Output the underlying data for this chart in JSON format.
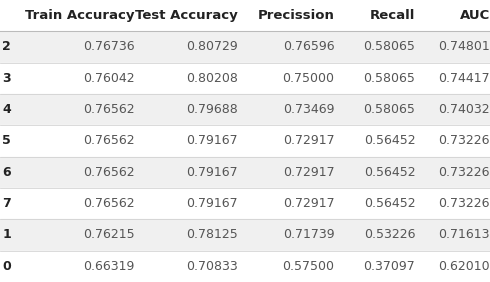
{
  "columns": [
    "Train Accuracy",
    "Test Accuracy",
    "Precission",
    "Recall",
    "AUC"
  ],
  "index": [
    "2",
    "3",
    "4",
    "5",
    "6",
    "7",
    "1",
    "0"
  ],
  "rows": [
    [
      0.76736,
      0.80729,
      0.76596,
      0.58065,
      0.74801
    ],
    [
      0.76042,
      0.80208,
      0.75,
      0.58065,
      0.74417
    ],
    [
      0.76562,
      0.79688,
      0.73469,
      0.58065,
      0.74032
    ],
    [
      0.76562,
      0.79167,
      0.72917,
      0.56452,
      0.73226
    ],
    [
      0.76562,
      0.79167,
      0.72917,
      0.56452,
      0.73226
    ],
    [
      0.76562,
      0.79167,
      0.72917,
      0.56452,
      0.73226
    ],
    [
      0.76215,
      0.78125,
      0.71739,
      0.53226,
      0.71613
    ],
    [
      0.66319,
      0.70833,
      0.575,
      0.37097,
      0.6201
    ]
  ],
  "odd_row_bg": "#F0F0F0",
  "even_row_bg": "#FFFFFF",
  "header_text_color": "#222222",
  "index_text_color": "#222222",
  "data_text_color": "#555555",
  "font_size": 9.0,
  "header_font_size": 9.5,
  "fig_width": 4.9,
  "fig_height": 2.82,
  "dpi": 100
}
